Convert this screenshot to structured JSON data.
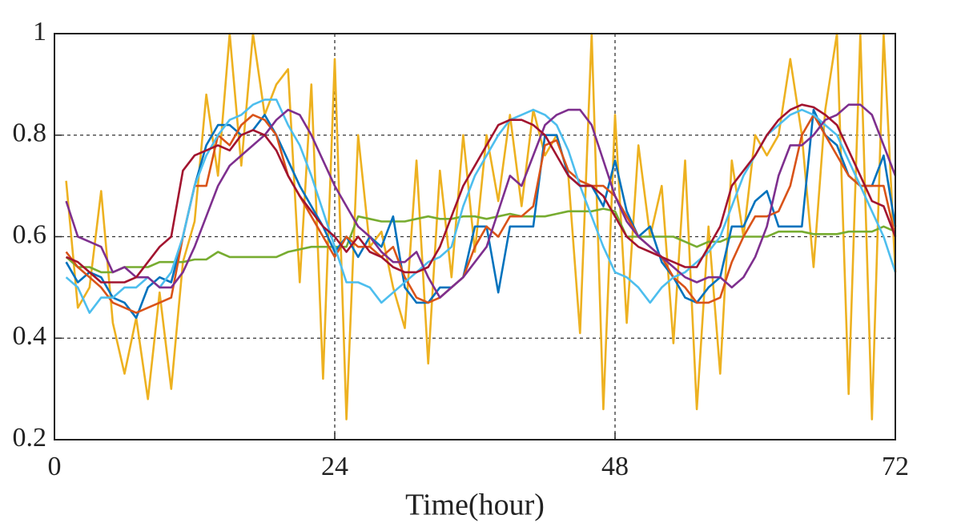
{
  "chart_data": {
    "type": "line",
    "xlabel": "Time(hour)",
    "x": [
      1,
      2,
      3,
      4,
      5,
      6,
      7,
      8,
      9,
      10,
      11,
      12,
      13,
      14,
      15,
      16,
      17,
      18,
      19,
      20,
      21,
      22,
      23,
      24,
      25,
      26,
      27,
      28,
      29,
      30,
      31,
      32,
      33,
      34,
      35,
      36,
      37,
      38,
      39,
      40,
      41,
      42,
      43,
      44,
      45,
      46,
      47,
      48,
      49,
      50,
      51,
      52,
      53,
      54,
      55,
      56,
      57,
      58,
      59,
      60,
      61,
      62,
      63,
      64,
      65,
      66,
      67,
      68,
      69,
      70,
      71,
      72
    ],
    "series": [
      {
        "color": "#edb120",
        "values": [
          0.71,
          0.46,
          0.5,
          0.69,
          0.43,
          0.33,
          0.44,
          0.28,
          0.49,
          0.3,
          0.55,
          0.63,
          0.88,
          0.72,
          1.0,
          0.74,
          1.0,
          0.84,
          0.9,
          0.93,
          0.51,
          0.9,
          0.32,
          0.95,
          0.24,
          0.8,
          0.58,
          0.61,
          0.5,
          0.42,
          0.75,
          0.35,
          0.73,
          0.52,
          0.8,
          0.57,
          0.8,
          0.67,
          0.84,
          0.66,
          0.85,
          0.76,
          0.8,
          0.72,
          0.41,
          1.0,
          0.26,
          0.84,
          0.43,
          0.78,
          0.6,
          0.7,
          0.39,
          0.75,
          0.26,
          0.62,
          0.33,
          0.75,
          0.6,
          0.8,
          0.76,
          0.8,
          0.95,
          0.8,
          0.54,
          0.85,
          1.0,
          0.29,
          1.0,
          0.24,
          1.0,
          0.53
        ]
      },
      {
        "color": "#77ac30",
        "values": [
          0.56,
          0.54,
          0.54,
          0.53,
          0.53,
          0.54,
          0.54,
          0.54,
          0.55,
          0.55,
          0.55,
          0.555,
          0.555,
          0.57,
          0.56,
          0.56,
          0.56,
          0.56,
          0.56,
          0.57,
          0.575,
          0.58,
          0.58,
          0.58,
          0.58,
          0.64,
          0.635,
          0.63,
          0.63,
          0.63,
          0.635,
          0.64,
          0.635,
          0.635,
          0.64,
          0.64,
          0.635,
          0.64,
          0.645,
          0.64,
          0.64,
          0.64,
          0.645,
          0.65,
          0.65,
          0.65,
          0.655,
          0.65,
          0.6,
          0.6,
          0.6,
          0.6,
          0.6,
          0.59,
          0.58,
          0.59,
          0.59,
          0.6,
          0.6,
          0.6,
          0.6,
          0.61,
          0.61,
          0.61,
          0.605,
          0.605,
          0.605,
          0.61,
          0.61,
          0.61,
          0.62,
          0.61
        ]
      },
      {
        "color": "#0072bd",
        "values": [
          0.55,
          0.51,
          0.53,
          0.52,
          0.48,
          0.47,
          0.44,
          0.5,
          0.52,
          0.51,
          0.6,
          0.7,
          0.78,
          0.82,
          0.82,
          0.8,
          0.81,
          0.84,
          0.8,
          0.75,
          0.7,
          0.66,
          0.62,
          0.57,
          0.6,
          0.56,
          0.6,
          0.58,
          0.64,
          0.5,
          0.47,
          0.47,
          0.5,
          0.5,
          0.52,
          0.62,
          0.62,
          0.49,
          0.62,
          0.62,
          0.62,
          0.8,
          0.8,
          0.72,
          0.7,
          0.7,
          0.66,
          0.75,
          0.65,
          0.6,
          0.62,
          0.55,
          0.52,
          0.48,
          0.47,
          0.5,
          0.52,
          0.62,
          0.62,
          0.67,
          0.69,
          0.62,
          0.62,
          0.62,
          0.85,
          0.8,
          0.78,
          0.72,
          0.7,
          0.7,
          0.76,
          0.62
        ]
      },
      {
        "color": "#d95319",
        "values": [
          0.57,
          0.54,
          0.52,
          0.5,
          0.47,
          0.46,
          0.45,
          0.46,
          0.47,
          0.48,
          0.6,
          0.7,
          0.7,
          0.8,
          0.78,
          0.82,
          0.84,
          0.83,
          0.8,
          0.72,
          0.68,
          0.64,
          0.6,
          0.56,
          0.6,
          0.58,
          0.58,
          0.56,
          0.58,
          0.52,
          0.48,
          0.47,
          0.48,
          0.5,
          0.52,
          0.58,
          0.62,
          0.6,
          0.64,
          0.64,
          0.66,
          0.78,
          0.79,
          0.73,
          0.71,
          0.7,
          0.7,
          0.68,
          0.64,
          0.6,
          0.58,
          0.56,
          0.52,
          0.5,
          0.47,
          0.47,
          0.48,
          0.55,
          0.6,
          0.64,
          0.64,
          0.65,
          0.7,
          0.8,
          0.84,
          0.8,
          0.76,
          0.72,
          0.7,
          0.7,
          0.7,
          0.6
        ]
      },
      {
        "color": "#4dbeee",
        "values": [
          0.52,
          0.5,
          0.45,
          0.48,
          0.48,
          0.5,
          0.5,
          0.52,
          0.5,
          0.53,
          0.6,
          0.7,
          0.76,
          0.8,
          0.83,
          0.84,
          0.86,
          0.87,
          0.87,
          0.82,
          0.78,
          0.72,
          0.65,
          0.58,
          0.51,
          0.51,
          0.5,
          0.47,
          0.49,
          0.51,
          0.53,
          0.55,
          0.56,
          0.58,
          0.66,
          0.72,
          0.76,
          0.8,
          0.83,
          0.84,
          0.85,
          0.84,
          0.82,
          0.77,
          0.7,
          0.64,
          0.58,
          0.53,
          0.52,
          0.5,
          0.47,
          0.5,
          0.52,
          0.53,
          0.55,
          0.57,
          0.6,
          0.66,
          0.72,
          0.76,
          0.8,
          0.82,
          0.84,
          0.85,
          0.84,
          0.82,
          0.8,
          0.75,
          0.7,
          0.65,
          0.6,
          0.53
        ]
      },
      {
        "color": "#7e2f8e",
        "values": [
          0.67,
          0.6,
          0.59,
          0.58,
          0.53,
          0.54,
          0.52,
          0.52,
          0.5,
          0.5,
          0.53,
          0.58,
          0.64,
          0.7,
          0.74,
          0.76,
          0.78,
          0.8,
          0.83,
          0.85,
          0.84,
          0.8,
          0.75,
          0.7,
          0.66,
          0.62,
          0.6,
          0.57,
          0.55,
          0.55,
          0.57,
          0.52,
          0.48,
          0.5,
          0.52,
          0.55,
          0.58,
          0.65,
          0.72,
          0.7,
          0.76,
          0.82,
          0.84,
          0.85,
          0.85,
          0.82,
          0.75,
          0.68,
          0.63,
          0.6,
          0.58,
          0.56,
          0.54,
          0.52,
          0.51,
          0.52,
          0.52,
          0.5,
          0.52,
          0.56,
          0.62,
          0.72,
          0.78,
          0.78,
          0.8,
          0.83,
          0.84,
          0.86,
          0.86,
          0.84,
          0.78,
          0.72
        ]
      },
      {
        "color": "#a2142f",
        "values": [
          0.56,
          0.55,
          0.53,
          0.51,
          0.51,
          0.51,
          0.52,
          0.55,
          0.58,
          0.6,
          0.73,
          0.76,
          0.77,
          0.78,
          0.77,
          0.8,
          0.81,
          0.8,
          0.77,
          0.72,
          0.68,
          0.65,
          0.62,
          0.6,
          0.57,
          0.6,
          0.57,
          0.56,
          0.54,
          0.53,
          0.53,
          0.54,
          0.58,
          0.64,
          0.7,
          0.74,
          0.78,
          0.82,
          0.83,
          0.83,
          0.82,
          0.8,
          0.76,
          0.72,
          0.7,
          0.7,
          0.68,
          0.64,
          0.6,
          0.58,
          0.57,
          0.56,
          0.55,
          0.54,
          0.54,
          0.58,
          0.62,
          0.7,
          0.73,
          0.76,
          0.8,
          0.83,
          0.85,
          0.86,
          0.855,
          0.84,
          0.82,
          0.77,
          0.72,
          0.67,
          0.66,
          0.6
        ]
      }
    ],
    "xlim": [
      0,
      72
    ],
    "xticks": [
      0,
      24,
      48,
      72
    ],
    "ylim": [
      0.2,
      1
    ],
    "yticks": [
      0.2,
      0.4,
      0.6,
      0.8,
      1
    ],
    "grid": true
  }
}
